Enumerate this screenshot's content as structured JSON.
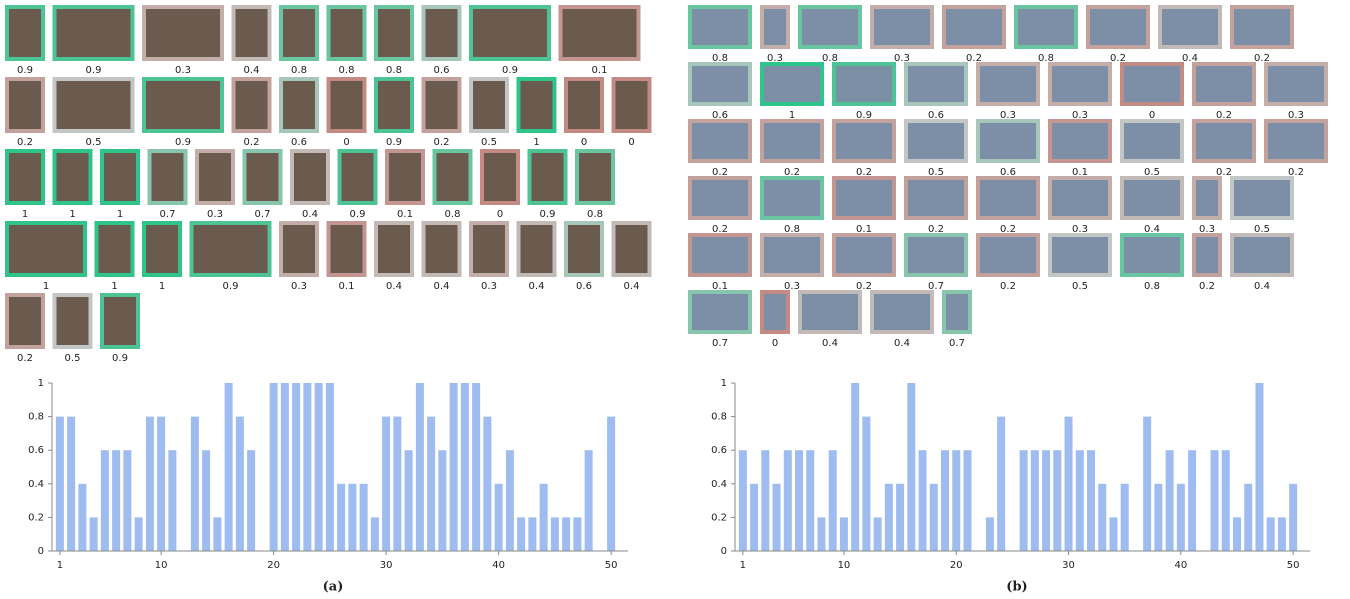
{
  "captions": [
    "(a)",
    "(b)"
  ],
  "galleries": [
    {
      "scores": [
        0.9,
        0.9,
        0.3,
        0.4,
        0.8,
        0.8,
        0.8,
        0.6,
        0.9,
        0.1,
        0.2,
        0.5,
        0.9,
        0.2,
        0.6,
        0,
        0.9,
        0.2,
        0.5,
        1,
        0,
        0,
        1,
        1,
        1,
        0.7,
        0.3,
        0.7,
        0.4,
        0.9,
        0.1,
        0.8,
        0,
        0.9,
        0.8,
        1,
        1,
        1,
        0.9,
        0.3,
        0.1,
        0.4,
        0.4,
        0.3,
        0.4,
        0.6,
        0.4,
        0.2,
        0.5,
        0.9
      ]
    },
    {
      "scores": [
        0.8,
        0.3,
        0.8,
        0.3,
        0.2,
        0.8,
        0.2,
        0.4,
        0.2,
        0.6,
        1,
        0.9,
        0.6,
        0.3,
        0.3,
        0,
        0.2,
        0.3,
        0.2,
        0.2,
        0.2,
        0.5,
        0.6,
        0.1,
        0.5,
        0.2,
        0.2,
        0.2,
        0.8,
        0.1,
        0.2,
        0.2,
        0.3,
        0.4,
        0.3,
        0.5,
        0.1,
        0.3,
        0.2,
        0.7,
        0.2,
        0.5,
        0.8,
        0.2,
        0.4,
        0.7,
        0,
        0.4,
        0.4,
        0.7
      ]
    }
  ],
  "border_colors": [
    "#c48a84",
    "#c2c6c4",
    "#2fc489"
  ],
  "chart_data": [
    {
      "type": "bar",
      "color": "#9fbcf1",
      "categories": [
        1,
        2,
        3,
        4,
        5,
        6,
        7,
        8,
        9,
        10,
        11,
        12,
        13,
        14,
        15,
        16,
        17,
        18,
        19,
        20,
        21,
        22,
        23,
        24,
        25,
        26,
        27,
        28,
        29,
        30,
        31,
        32,
        33,
        34,
        35,
        36,
        37,
        38,
        39,
        40,
        41,
        42,
        43,
        44,
        45,
        46,
        47,
        48,
        49,
        50
      ],
      "values": [
        0.8,
        0.8,
        0.4,
        0.2,
        0.6,
        0.6,
        0.6,
        0.2,
        0.8,
        0.8,
        0.6,
        0,
        0.8,
        0.6,
        0.2,
        1,
        0.8,
        0.6,
        0,
        1,
        1,
        1,
        1,
        1,
        1,
        0.4,
        0.4,
        0.4,
        0.2,
        0.8,
        0.8,
        0.6,
        1,
        0.8,
        0.6,
        1,
        1,
        1,
        0.8,
        0.4,
        0.6,
        0.2,
        0.2,
        0.4,
        0.2,
        0.2,
        0.2,
        0.6,
        0,
        0.8
      ],
      "xlim": [
        0.3,
        51.5
      ],
      "xticks": [
        1,
        10,
        20,
        30,
        40,
        50
      ],
      "ylim": [
        0,
        1
      ],
      "yticks": [
        0,
        0.2,
        0.4,
        0.6,
        0.8,
        1
      ]
    },
    {
      "type": "bar",
      "color": "#9fbcf1",
      "categories": [
        1,
        2,
        3,
        4,
        5,
        6,
        7,
        8,
        9,
        10,
        11,
        12,
        13,
        14,
        15,
        16,
        17,
        18,
        19,
        20,
        21,
        22,
        23,
        24,
        25,
        26,
        27,
        28,
        29,
        30,
        31,
        32,
        33,
        34,
        35,
        36,
        37,
        38,
        39,
        40,
        41,
        42,
        43,
        44,
        45,
        46,
        47,
        48,
        49,
        50
      ],
      "values": [
        0.6,
        0.4,
        0.6,
        0.4,
        0.6,
        0.6,
        0.6,
        0.2,
        0.6,
        0.2,
        1,
        0.8,
        0.2,
        0.4,
        0.4,
        1,
        0.6,
        0.4,
        0.6,
        0.6,
        0.6,
        0,
        0.2,
        0.8,
        0,
        0.6,
        0.6,
        0.6,
        0.6,
        0.8,
        0.6,
        0.6,
        0.4,
        0.2,
        0.4,
        0,
        0.8,
        0.4,
        0.6,
        0.4,
        0.6,
        0,
        0.6,
        0.6,
        0.2,
        0.4,
        1,
        0.2,
        0.2,
        0.4
      ],
      "xlim": [
        0.3,
        51.5
      ],
      "xticks": [
        1,
        10,
        20,
        30,
        40,
        50
      ],
      "ylim": [
        0,
        1
      ],
      "yticks": [
        0,
        0.2,
        0.4,
        0.6,
        0.8,
        1
      ]
    }
  ]
}
